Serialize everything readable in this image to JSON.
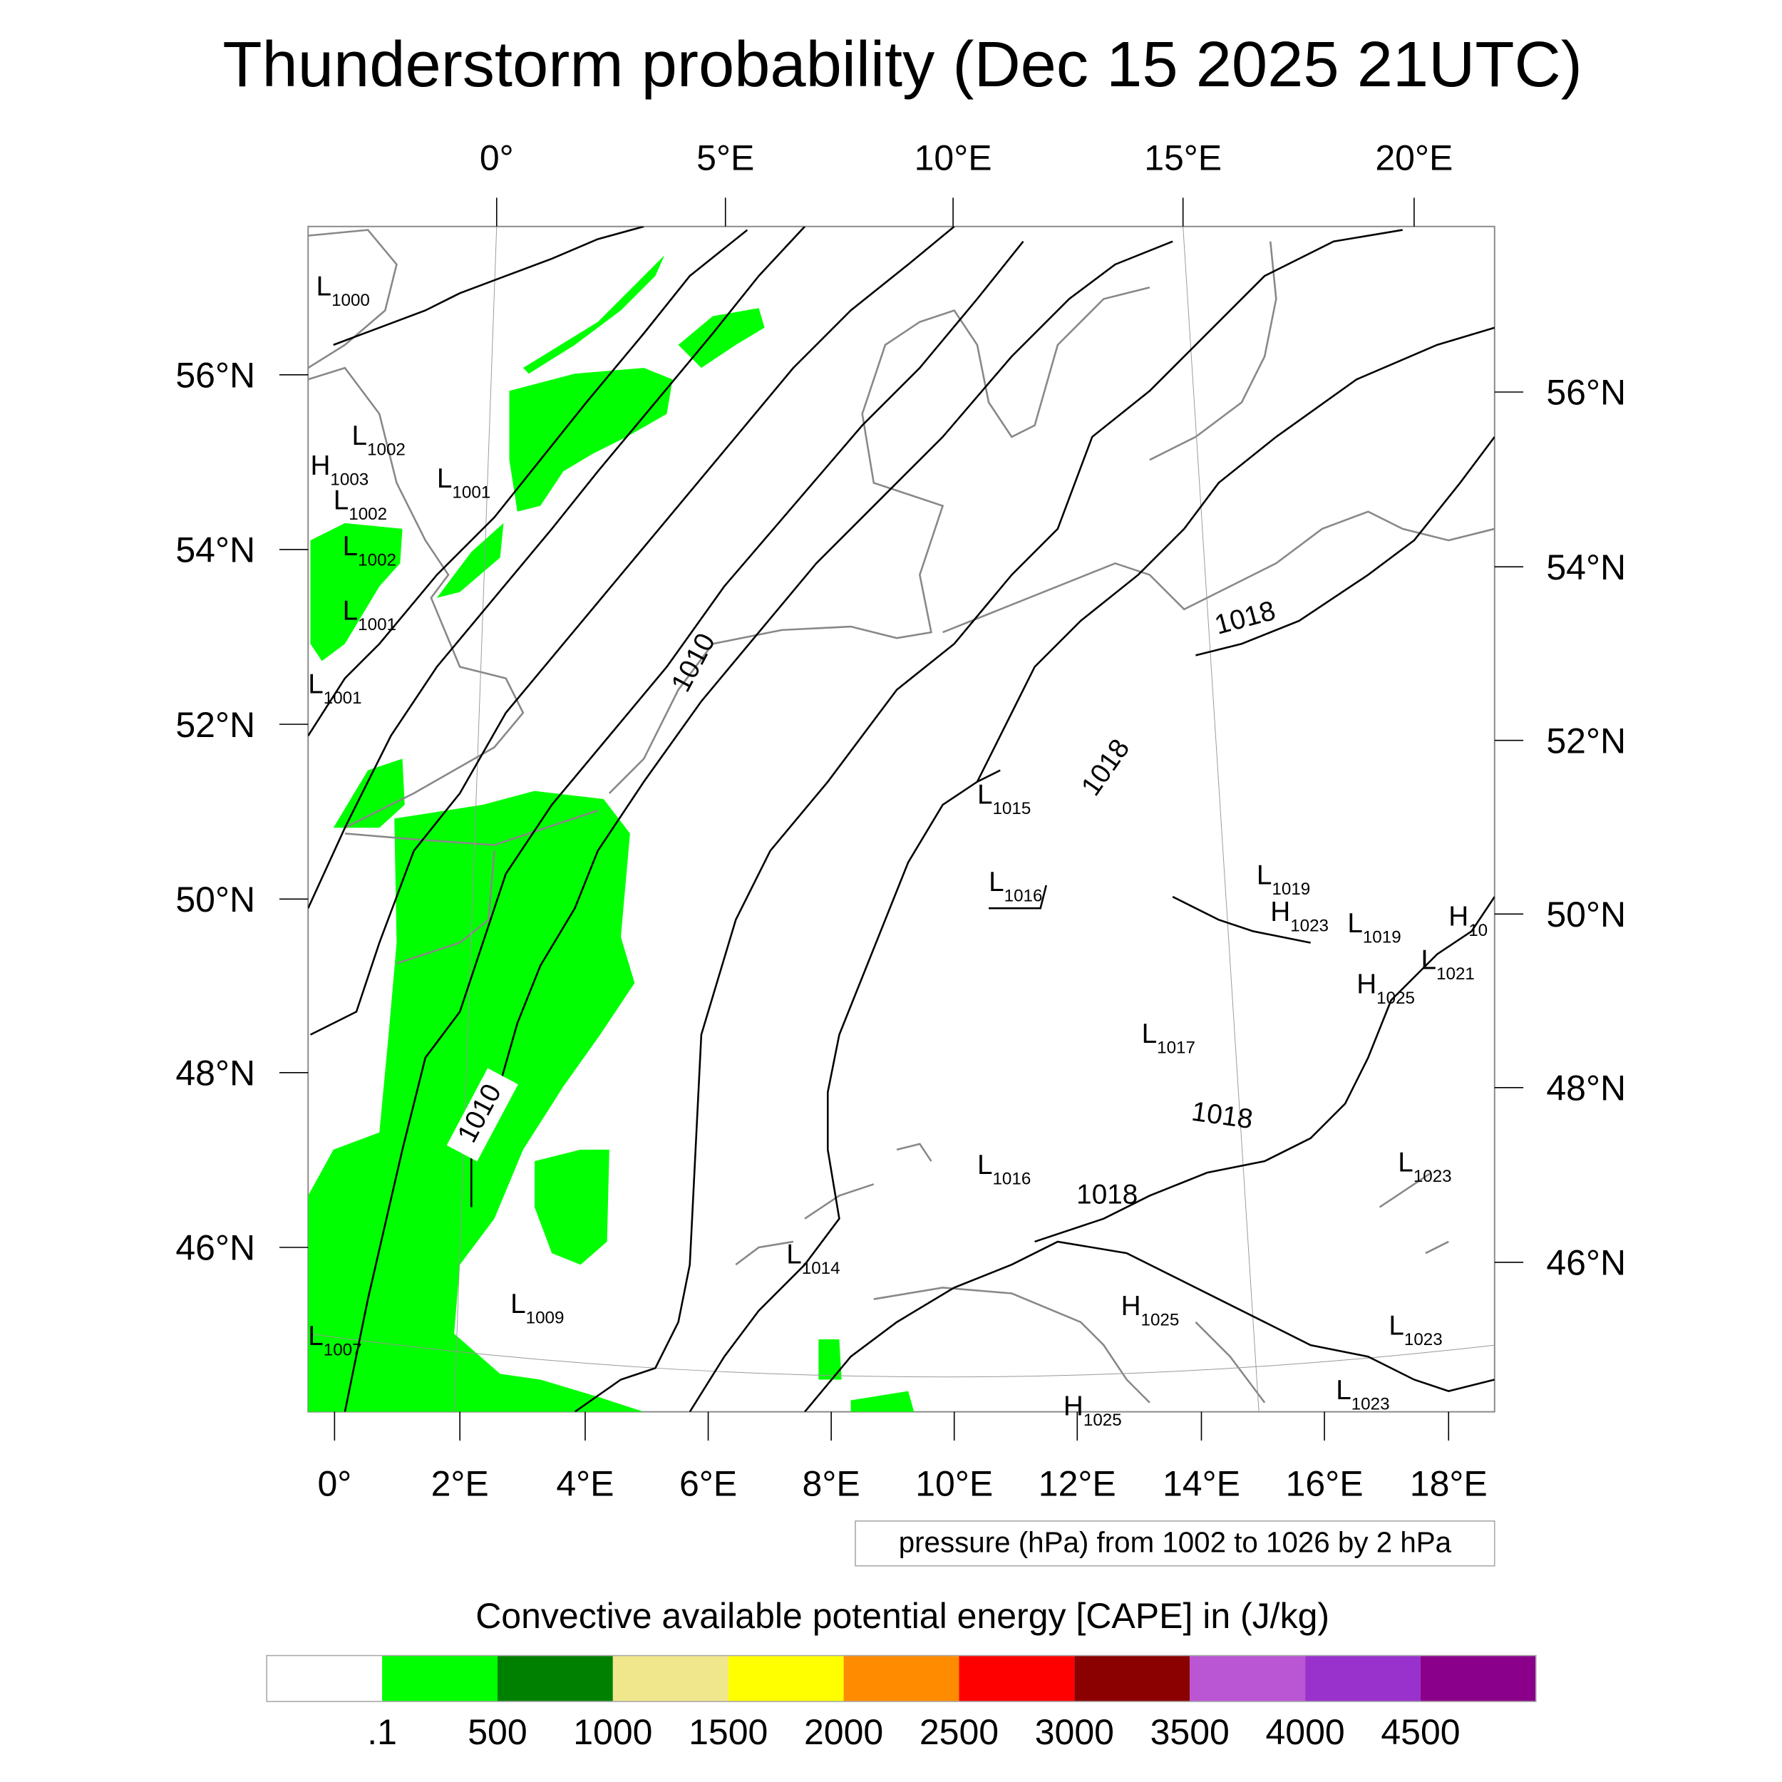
{
  "title": "Thunderstorm probability (Dec 15 2025 21UTC)",
  "top_lon_labels": [
    "0°",
    "5°E",
    "10°E",
    "15°E",
    "20°E"
  ],
  "left_lat_labels": [
    "56°N",
    "54°N",
    "52°N",
    "50°N",
    "48°N",
    "46°N"
  ],
  "right_lat_labels": [
    "56°N",
    "54°N",
    "52°N",
    "50°N",
    "48°N",
    "46°N"
  ],
  "bottom_lon_labels": [
    "0°",
    "2°E",
    "4°E",
    "6°E",
    "8°E",
    "10°E",
    "12°E",
    "14°E",
    "16°E",
    "18°E"
  ],
  "pressure_note": "pressure (hPa) from 1002 to 1026 by 2 hPa",
  "pressure_centers": [
    {
      "t": "L",
      "v": "1000"
    },
    {
      "t": "L",
      "v": "1002"
    },
    {
      "t": "H",
      "v": "1003"
    },
    {
      "t": "L",
      "v": "1001"
    },
    {
      "t": "L",
      "v": "1002"
    },
    {
      "t": "L",
      "v": "1002"
    },
    {
      "t": "L",
      "v": "1001"
    },
    {
      "t": "L",
      "v": "1001"
    },
    {
      "t": "L",
      "v": "1015"
    },
    {
      "t": "L",
      "v": "1016"
    },
    {
      "t": "L",
      "v": "1019"
    },
    {
      "t": "H",
      "v": "1023"
    },
    {
      "t": "L",
      "v": "1019"
    },
    {
      "t": "H",
      "v": "10"
    },
    {
      "t": "L",
      "v": "1021"
    },
    {
      "t": "H",
      "v": "1025"
    },
    {
      "t": "L",
      "v": "1017"
    },
    {
      "t": "L",
      "v": "1016"
    },
    {
      "t": "L",
      "v": "1014"
    },
    {
      "t": "L",
      "v": "1009"
    },
    {
      "t": "H",
      "v": "1025"
    },
    {
      "t": "L",
      "v": "1023"
    },
    {
      "t": "L",
      "v": "1023"
    },
    {
      "t": "L",
      "v": "1023"
    },
    {
      "t": "L",
      "v": "1007"
    },
    {
      "t": "H",
      "v": "1025"
    }
  ],
  "contour_labels": [
    "1010",
    "1010",
    "1018",
    "1018",
    "1018",
    "1018"
  ],
  "colorbar": {
    "title": "Convective available potential energy [CAPE] in (J/kg)",
    "colors": [
      "#ffffff",
      "#00ff00",
      "#008000",
      "#f0e68c",
      "#ffff00",
      "#ff8c00",
      "#ff0000",
      "#8b0000",
      "#ba55d3",
      "#9932cc",
      "#8b008b"
    ],
    "labels": [
      ".1",
      "500",
      "1000",
      "1500",
      "2000",
      "2500",
      "3000",
      "3500",
      "4000",
      "4500"
    ]
  }
}
